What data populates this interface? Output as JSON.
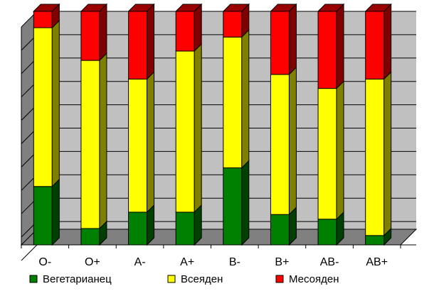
{
  "chart_data": {
    "type": "bar",
    "stacked": true,
    "percent_stacked": true,
    "three_d": true,
    "categories": [
      "O-",
      "O+",
      "A-",
      "A+",
      "B-",
      "B+",
      "AB-",
      "AB+"
    ],
    "series": [
      {
        "name": "Вегетарианец",
        "values": [
          25,
          7,
          14,
          14,
          33,
          13,
          11,
          4
        ],
        "color": "#008000"
      },
      {
        "name": "Всеяден",
        "values": [
          68,
          72,
          57,
          69,
          56,
          60,
          56,
          67
        ],
        "color": "#ffff00"
      },
      {
        "name": "Месояден",
        "values": [
          7,
          21,
          29,
          17,
          11,
          27,
          33,
          29
        ],
        "color": "#ff0000"
      }
    ],
    "ylim": [
      0,
      100
    ],
    "grid": true,
    "legend_position": "bottom"
  }
}
